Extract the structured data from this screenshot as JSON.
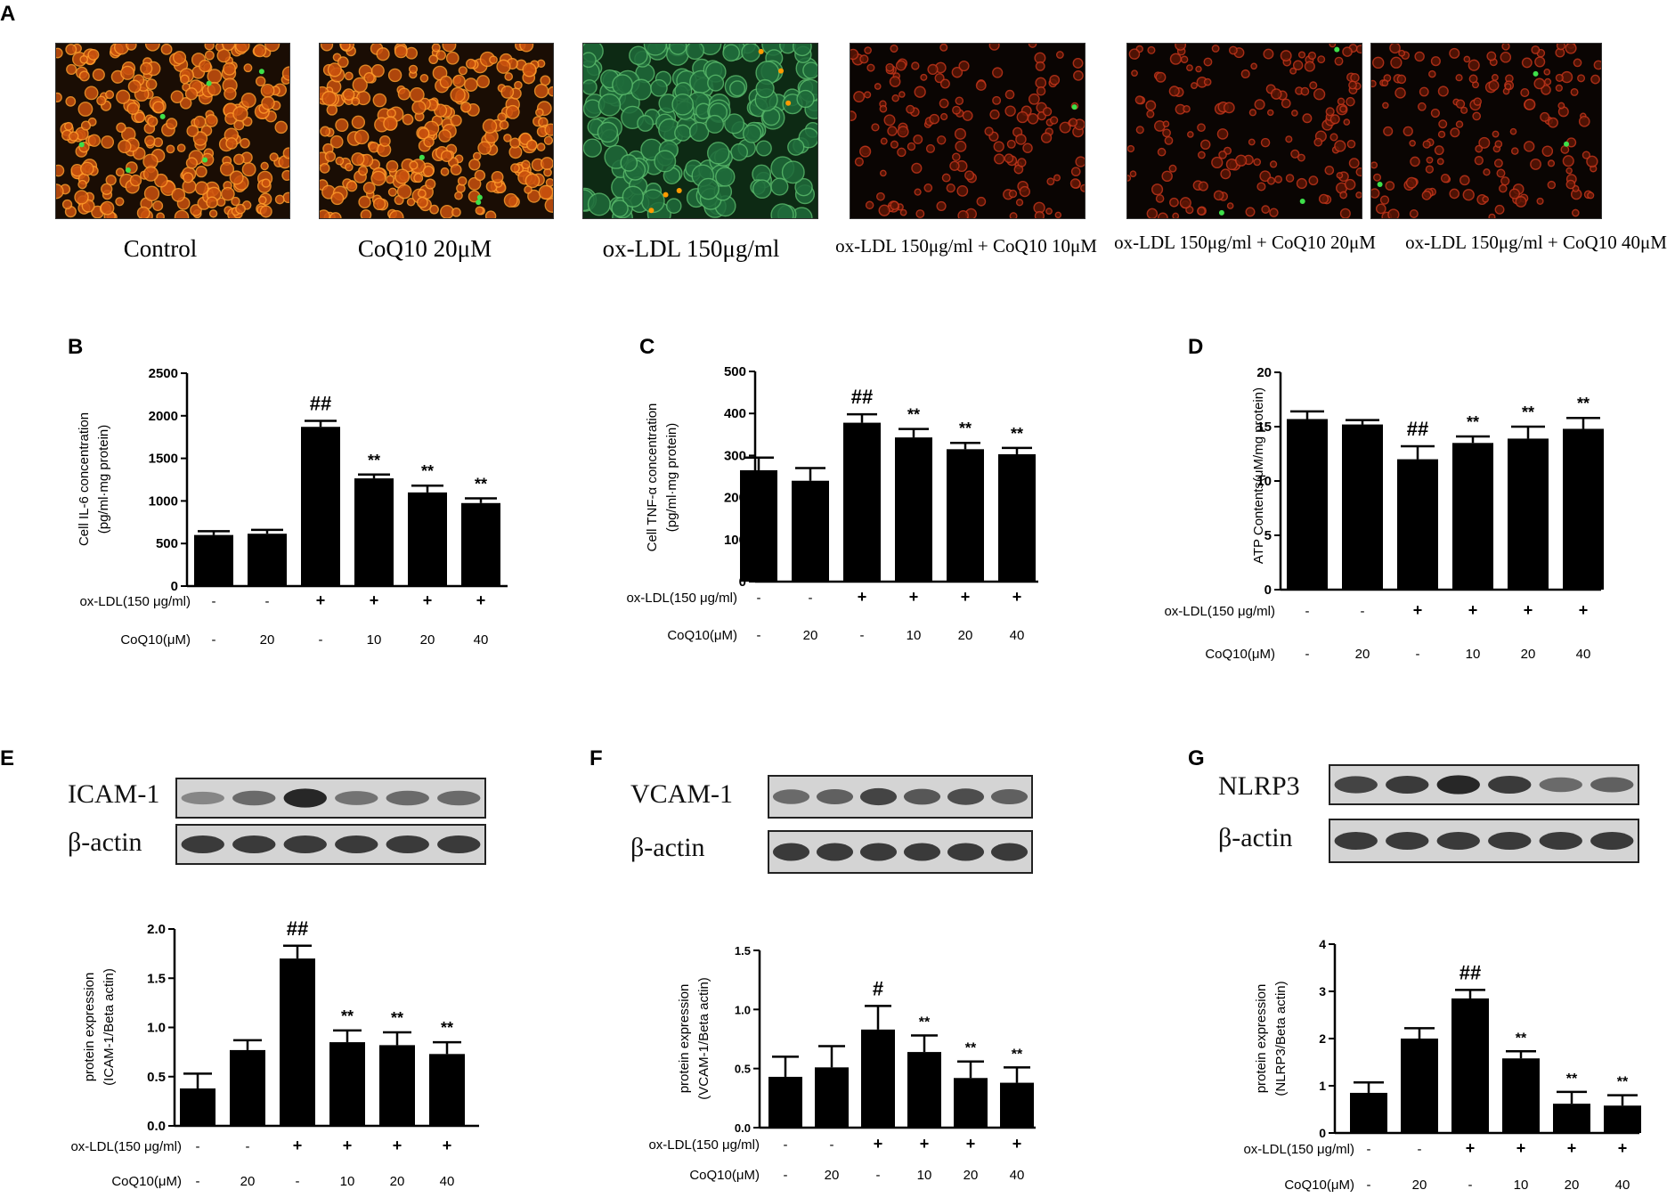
{
  "panel_a": {
    "letter": "A",
    "images": [
      {
        "caption": "Control",
        "theme": "red",
        "green_spots": 6
      },
      {
        "caption": "CoQ10 20μM",
        "theme": "red",
        "green_spots": 3
      },
      {
        "caption": "ox-LDL 150μg/ml",
        "theme": "green",
        "green_spots": 0
      },
      {
        "caption": "ox-LDL 150μg/ml + CoQ10 10μM",
        "theme": "dark-red",
        "green_spots": 1
      },
      {
        "caption": "ox-LDL 150μg/ml + CoQ10 20μM",
        "theme": "dark-red",
        "green_spots": 3
      },
      {
        "caption": "ox-LDL 150μg/ml + CoQ10 40μM",
        "theme": "dark-red",
        "green_spots": 3
      }
    ]
  },
  "treatments": {
    "oxldl_label": "ox-LDL(150 μg/ml)",
    "coq10_label": "CoQ10(μM)",
    "oxldl": [
      "-",
      "-",
      "+",
      "+",
      "+",
      "+"
    ],
    "coq10": [
      "-",
      "20",
      "-",
      "10",
      "20",
      "40"
    ]
  },
  "western": [
    {
      "letter": "E",
      "target": "ICAM-1",
      "control": "β-actin",
      "target_band_intensity": [
        0.45,
        0.6,
        0.95,
        0.55,
        0.6,
        0.6
      ]
    },
    {
      "letter": "F",
      "target": "VCAM-1",
      "control": "β-actin",
      "target_band_intensity": [
        0.6,
        0.65,
        0.8,
        0.7,
        0.75,
        0.65
      ]
    },
    {
      "letter": "G",
      "target": "NLRP3",
      "control": "β-actin",
      "target_band_intensity": [
        0.8,
        0.85,
        0.95,
        0.85,
        0.6,
        0.65
      ]
    }
  ],
  "chart_data": [
    {
      "letter": "B",
      "type": "bar",
      "ylabel": [
        "Cell IL-6 concentration",
        "(pg/ml·mg protein)"
      ],
      "ylim": [
        0,
        2500
      ],
      "yticks": [
        0,
        500,
        1000,
        1500,
        2000,
        2500
      ],
      "values": [
        600,
        615,
        1870,
        1265,
        1100,
        975
      ],
      "errors": [
        45,
        45,
        70,
        45,
        80,
        55
      ],
      "marks": [
        "",
        "",
        "##",
        "**",
        "**",
        "**"
      ]
    },
    {
      "letter": "C",
      "type": "bar",
      "ylabel": [
        "Cell TNF-α concentration",
        "(pg/ml·mg protein)"
      ],
      "ylim": [
        0,
        500
      ],
      "yticks": [
        0,
        100,
        200,
        300,
        400,
        500
      ],
      "values": [
        265,
        240,
        378,
        343,
        315,
        303
      ],
      "errors": [
        30,
        30,
        20,
        20,
        15,
        15
      ],
      "marks": [
        "",
        "",
        "##",
        "**",
        "**",
        "**"
      ]
    },
    {
      "letter": "D",
      "type": "bar",
      "ylabel": [
        "ATP Contents(μM/mg protein)"
      ],
      "ylim": [
        0,
        20
      ],
      "yticks": [
        0,
        5,
        10,
        15,
        20
      ],
      "values": [
        15.7,
        15.2,
        12.0,
        13.5,
        13.9,
        14.8
      ],
      "errors": [
        0.7,
        0.4,
        1.2,
        0.6,
        1.1,
        1.0
      ],
      "marks": [
        "",
        "",
        "##",
        "**",
        "**",
        "**"
      ]
    },
    {
      "letter": "E",
      "type": "bar",
      "ylabel": [
        "protein expression",
        "(ICAM-1/Beta actin)"
      ],
      "ylim": [
        0,
        2.0
      ],
      "yticks": [
        "0.0",
        "0.5",
        "1.0",
        "1.5",
        "2.0"
      ],
      "values": [
        0.38,
        0.77,
        1.7,
        0.85,
        0.82,
        0.73
      ],
      "errors": [
        0.15,
        0.1,
        0.13,
        0.12,
        0.13,
        0.12
      ],
      "marks": [
        "",
        "",
        "##",
        "**",
        "**",
        "**"
      ]
    },
    {
      "letter": "F",
      "type": "bar",
      "ylabel": [
        "protein expression",
        "(VCAM-1/Beta actin)"
      ],
      "ylim": [
        0,
        1.5
      ],
      "yticks": [
        "0.0",
        "0.5",
        "1.0",
        "1.5"
      ],
      "values": [
        0.43,
        0.51,
        0.83,
        0.64,
        0.42,
        0.38
      ],
      "errors": [
        0.17,
        0.18,
        0.2,
        0.14,
        0.14,
        0.13
      ],
      "marks": [
        "",
        "",
        "#",
        "**",
        "**",
        "**"
      ]
    },
    {
      "letter": "G",
      "type": "bar",
      "ylabel": [
        "protein expression",
        "(NLRP3/Beta actin)"
      ],
      "ylim": [
        0,
        4
      ],
      "yticks": [
        0,
        1,
        2,
        3,
        4
      ],
      "values": [
        0.85,
        2.0,
        2.85,
        1.58,
        0.62,
        0.58
      ],
      "errors": [
        0.22,
        0.22,
        0.18,
        0.15,
        0.25,
        0.22
      ],
      "marks": [
        "",
        "",
        "##",
        "**",
        "**",
        "**"
      ]
    }
  ]
}
